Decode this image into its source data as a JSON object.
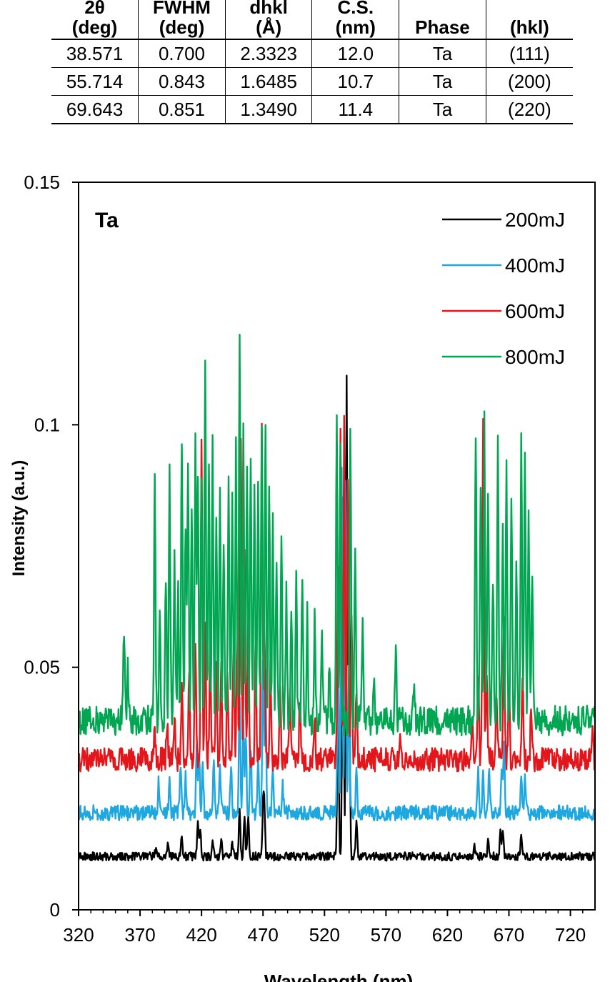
{
  "table": {
    "headers": [
      [
        "2θ",
        "(deg)"
      ],
      [
        "FWHM",
        "(deg)"
      ],
      [
        "dhkl",
        "(Å)"
      ],
      [
        "C.S.",
        "(nm)"
      ],
      [
        "Phase"
      ],
      [
        "(hkl)"
      ]
    ],
    "rows": [
      [
        "38.571",
        "0.700",
        "2.3323",
        "12.0",
        "Ta",
        "(111)"
      ],
      [
        "55.714",
        "0.843",
        "1.6485",
        "10.7",
        "Ta",
        "(200)"
      ],
      [
        "69.643",
        "0.851",
        "1.3490",
        "11.4",
        "Ta",
        "(220)"
      ]
    ]
  },
  "chart_data": {
    "type": "line",
    "title": "",
    "annotation": "Ta",
    "xlabel": "Wavelength (nm)",
    "ylabel": "Intensity (a.u.)",
    "xlim": [
      320,
      740
    ],
    "ylim": [
      0,
      0.15
    ],
    "xticks": [
      "320",
      "370",
      "420",
      "470",
      "520",
      "570",
      "620",
      "670",
      "720"
    ],
    "yticks": [
      "0",
      "0.05",
      "0.1",
      "0.15"
    ],
    "grid": false,
    "legend_position": "top-right",
    "series": [
      {
        "name": "200mJ",
        "color": "#000000",
        "baseline": 0.011,
        "peaks": [
          [
            383,
            0.013
          ],
          [
            393,
            0.014
          ],
          [
            404,
            0.015
          ],
          [
            417,
            0.019
          ],
          [
            419,
            0.017
          ],
          [
            429,
            0.014
          ],
          [
            436,
            0.015
          ],
          [
            445,
            0.014
          ],
          [
            451,
            0.021
          ],
          [
            455,
            0.02
          ],
          [
            458,
            0.019
          ],
          [
            470,
            0.02
          ],
          [
            471,
            0.022
          ],
          [
            531,
            0.05
          ],
          [
            535,
            0.085
          ],
          [
            538,
            0.11
          ],
          [
            540,
            0.07
          ],
          [
            546,
            0.019
          ],
          [
            642,
            0.013
          ],
          [
            653,
            0.014
          ],
          [
            663,
            0.016
          ],
          [
            665,
            0.017
          ],
          [
            680,
            0.015
          ]
        ]
      },
      {
        "name": "400mJ",
        "color": "#1fa8e0",
        "baseline": 0.02,
        "peaks": [
          [
            385,
            0.026
          ],
          [
            394,
            0.027
          ],
          [
            403,
            0.03
          ],
          [
            407,
            0.028
          ],
          [
            416,
            0.033
          ],
          [
            418,
            0.032
          ],
          [
            421,
            0.03
          ],
          [
            430,
            0.031
          ],
          [
            435,
            0.03
          ],
          [
            444,
            0.031
          ],
          [
            451,
            0.045
          ],
          [
            454,
            0.038
          ],
          [
            456,
            0.036
          ],
          [
            460,
            0.034
          ],
          [
            466,
            0.032
          ],
          [
            470,
            0.052
          ],
          [
            472,
            0.048
          ],
          [
            478,
            0.03
          ],
          [
            486,
            0.026
          ],
          [
            531,
            0.055
          ],
          [
            534,
            0.09
          ],
          [
            537,
            0.09
          ],
          [
            540,
            0.05
          ],
          [
            546,
            0.03
          ],
          [
            645,
            0.03
          ],
          [
            649,
            0.028
          ],
          [
            654,
            0.029
          ],
          [
            664,
            0.029
          ],
          [
            666,
            0.034
          ],
          [
            680,
            0.029
          ],
          [
            683,
            0.027
          ]
        ]
      },
      {
        "name": "600mJ",
        "color": "#e3161b",
        "baseline": 0.031,
        "peaks": [
          [
            382,
            0.037
          ],
          [
            392,
            0.038
          ],
          [
            398,
            0.04
          ],
          [
            404,
            0.045
          ],
          [
            410,
            0.048
          ],
          [
            415,
            0.057
          ],
          [
            420,
            0.098
          ],
          [
            423,
            0.06
          ],
          [
            427,
            0.055
          ],
          [
            432,
            0.05
          ],
          [
            436,
            0.052
          ],
          [
            441,
            0.05
          ],
          [
            446,
            0.056
          ],
          [
            449,
            0.058
          ],
          [
            452,
            0.098
          ],
          [
            455,
            0.075
          ],
          [
            458,
            0.062
          ],
          [
            464,
            0.055
          ],
          [
            469,
            0.098
          ],
          [
            471,
            0.06
          ],
          [
            476,
            0.05
          ],
          [
            484,
            0.048
          ],
          [
            492,
            0.046
          ],
          [
            500,
            0.044
          ],
          [
            512,
            0.04
          ],
          [
            531,
            0.07
          ],
          [
            533,
            0.1
          ],
          [
            536,
            0.1
          ],
          [
            539,
            0.09
          ],
          [
            542,
            0.06
          ],
          [
            546,
            0.045
          ],
          [
            582,
            0.035
          ],
          [
            640,
            0.038
          ],
          [
            645,
            0.048
          ],
          [
            649,
            0.103
          ],
          [
            652,
            0.05
          ],
          [
            660,
            0.045
          ],
          [
            666,
            0.06
          ],
          [
            670,
            0.045
          ],
          [
            681,
            0.05
          ],
          [
            688,
            0.04
          ],
          [
            738,
            0.038
          ]
        ]
      },
      {
        "name": "800mJ",
        "color": "#00a651",
        "baseline": 0.039,
        "peaks": [
          [
            357,
            0.057
          ],
          [
            360,
            0.049
          ],
          [
            382,
            0.09
          ],
          [
            386,
            0.06
          ],
          [
            391,
            0.07
          ],
          [
            394,
            0.09
          ],
          [
            398,
            0.072
          ],
          [
            401,
            0.065
          ],
          [
            404,
            0.099
          ],
          [
            407,
            0.08
          ],
          [
            409,
            0.092
          ],
          [
            412,
            0.085
          ],
          [
            415,
            0.095
          ],
          [
            417,
            0.088
          ],
          [
            420,
            0.09
          ],
          [
            423,
            0.115
          ],
          [
            426,
            0.09
          ],
          [
            429,
            0.097
          ],
          [
            432,
            0.082
          ],
          [
            435,
            0.088
          ],
          [
            438,
            0.078
          ],
          [
            442,
            0.09
          ],
          [
            445,
            0.085
          ],
          [
            448,
            0.095
          ],
          [
            451,
            0.118
          ],
          [
            454,
            0.099
          ],
          [
            457,
            0.09
          ],
          [
            460,
            0.095
          ],
          [
            463,
            0.085
          ],
          [
            466,
            0.09
          ],
          [
            469,
            0.099
          ],
          [
            472,
            0.098
          ],
          [
            475,
            0.09
          ],
          [
            478,
            0.08
          ],
          [
            481,
            0.07
          ],
          [
            485,
            0.075
          ],
          [
            489,
            0.065
          ],
          [
            493,
            0.06
          ],
          [
            497,
            0.068
          ],
          [
            502,
            0.07
          ],
          [
            506,
            0.062
          ],
          [
            512,
            0.06
          ],
          [
            518,
            0.055
          ],
          [
            524,
            0.052
          ],
          [
            530,
            0.1
          ],
          [
            533,
            0.095
          ],
          [
            541,
            0.1
          ],
          [
            545,
            0.075
          ],
          [
            551,
            0.06
          ],
          [
            560,
            0.048
          ],
          [
            578,
            0.055
          ],
          [
            593,
            0.047
          ],
          [
            643,
            0.1
          ],
          [
            647,
            0.09
          ],
          [
            650,
            0.1
          ],
          [
            653,
            0.085
          ],
          [
            657,
            0.07
          ],
          [
            661,
            0.095
          ],
          [
            665,
            0.08
          ],
          [
            668,
            0.09
          ],
          [
            672,
            0.085
          ],
          [
            676,
            0.07
          ],
          [
            680,
            0.098
          ],
          [
            683,
            0.095
          ],
          [
            686,
            0.08
          ],
          [
            689,
            0.07
          ]
        ]
      }
    ]
  }
}
